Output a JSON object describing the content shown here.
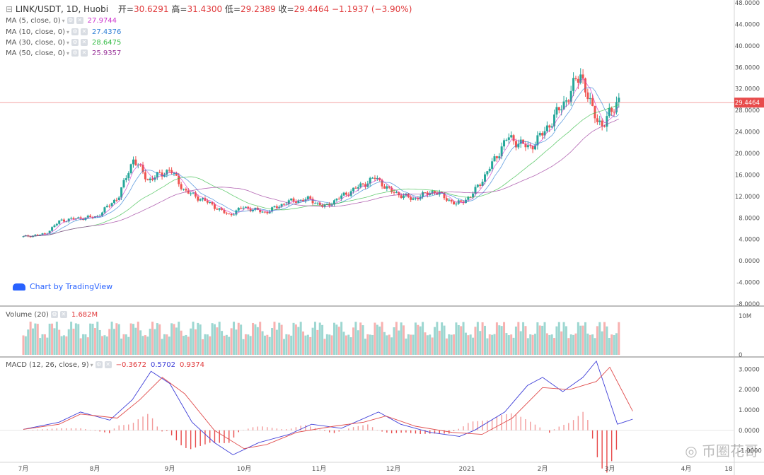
{
  "header": {
    "symbol": "LINK/USDT, 1D, Huobi",
    "open_label": "开",
    "open": "30.6291",
    "high_label": "高",
    "high": "31.4300",
    "low_label": "低",
    "low": "29.2389",
    "close_label": "收",
    "close": "29.4464",
    "change": "−1.1937 (−3.90%)"
  },
  "ma_legend": [
    {
      "label": "MA (5, close, 0)",
      "value": "27.9744",
      "color": "#cc33cc"
    },
    {
      "label": "MA (10, close, 0)",
      "value": "27.4376",
      "color": "#2f7fd6"
    },
    {
      "label": "MA (30, close, 0)",
      "value": "28.6475",
      "color": "#33bb44"
    },
    {
      "label": "MA (50, close, 0)",
      "value": "25.9357",
      "color": "#993399"
    }
  ],
  "volume_legend": {
    "label": "Volume (20)",
    "value": "1.682M"
  },
  "macd_legend": {
    "label": "MACD (12, 26, close, 9)",
    "v1": "−0.3672",
    "v2": "0.5702",
    "v3": "0.9374"
  },
  "last_price_tag": "29.4464",
  "branding": {
    "tradingview": "Chart by TradingView",
    "watermark": "币圈花哥"
  },
  "colors": {
    "up": "#26a69a",
    "down": "#ef5350",
    "price_line": "#f4a0a0",
    "macd": "#3f3fd8",
    "signal": "#e04b4b"
  },
  "chart_data": [
    {
      "type": "candlestick",
      "title": "LINK/USDT, 1D, Huobi",
      "ylim": [
        -8,
        48
      ],
      "price_ticks": [
        "48.0000",
        "44.0000",
        "40.0000",
        "36.0000",
        "32.0000",
        "28.0000",
        "24.0000",
        "20.0000",
        "16.0000",
        "12.0000",
        "8.0000",
        "4.0000",
        "0.0000",
        "-4.0000",
        "-8.0000"
      ],
      "x_ticks": [
        "7月",
        "8月",
        "9月",
        "10月",
        "11月",
        "12月",
        "2021",
        "2月",
        "3月",
        "4月",
        "18"
      ],
      "trend_points": [
        {
          "m": 0,
          "v": 4.5
        },
        {
          "m": 0.3,
          "v": 5.0
        },
        {
          "m": 0.5,
          "v": 7.5
        },
        {
          "m": 0.8,
          "v": 8.0
        },
        {
          "m": 1.0,
          "v": 8.2
        },
        {
          "m": 1.3,
          "v": 12.0
        },
        {
          "m": 1.5,
          "v": 19.0
        },
        {
          "m": 1.7,
          "v": 15.0
        },
        {
          "m": 2.0,
          "v": 17.0
        },
        {
          "m": 2.2,
          "v": 13.0
        },
        {
          "m": 2.5,
          "v": 11.0
        },
        {
          "m": 2.8,
          "v": 8.5
        },
        {
          "m": 3.0,
          "v": 10.0
        },
        {
          "m": 3.3,
          "v": 9.0
        },
        {
          "m": 3.6,
          "v": 11.0
        },
        {
          "m": 3.9,
          "v": 11.5
        },
        {
          "m": 4.1,
          "v": 10.0
        },
        {
          "m": 4.4,
          "v": 12.5
        },
        {
          "m": 4.8,
          "v": 15.5
        },
        {
          "m": 5.0,
          "v": 13.0
        },
        {
          "m": 5.3,
          "v": 11.5
        },
        {
          "m": 5.6,
          "v": 13.0
        },
        {
          "m": 5.9,
          "v": 10.5
        },
        {
          "m": 6.1,
          "v": 12.0
        },
        {
          "m": 6.3,
          "v": 16.0
        },
        {
          "m": 6.6,
          "v": 23.0
        },
        {
          "m": 6.9,
          "v": 21.0
        },
        {
          "m": 7.1,
          "v": 24.0
        },
        {
          "m": 7.4,
          "v": 30.0
        },
        {
          "m": 7.6,
          "v": 35.0
        },
        {
          "m": 7.75,
          "v": 28.0
        },
        {
          "m": 7.9,
          "v": 25.0
        },
        {
          "m": 8.1,
          "v": 30.0
        }
      ],
      "last_price": 29.4464
    },
    {
      "type": "bar",
      "title": "Volume (20)",
      "ylim": [
        0,
        12
      ],
      "ticks": [
        "10M",
        "0"
      ],
      "last_value": "1.682M"
    },
    {
      "type": "line",
      "title": "MACD (12, 26, close, 9)",
      "ylim": [
        -1.5,
        3.5
      ],
      "ticks": [
        "3.0000",
        "2.0000",
        "1.0000",
        "0.0000",
        "-1.0000"
      ],
      "macd_points": [
        {
          "m": 0,
          "v": 0.05
        },
        {
          "m": 0.5,
          "v": 0.4
        },
        {
          "m": 0.8,
          "v": 0.9
        },
        {
          "m": 1.2,
          "v": 0.5
        },
        {
          "m": 1.5,
          "v": 1.5
        },
        {
          "m": 1.75,
          "v": 2.9
        },
        {
          "m": 2.0,
          "v": 2.3
        },
        {
          "m": 2.3,
          "v": 0.4
        },
        {
          "m": 2.6,
          "v": -0.6
        },
        {
          "m": 2.85,
          "v": -1.2
        },
        {
          "m": 3.2,
          "v": -0.6
        },
        {
          "m": 3.6,
          "v": -0.2
        },
        {
          "m": 3.9,
          "v": 0.3
        },
        {
          "m": 4.3,
          "v": 0.1
        },
        {
          "m": 4.8,
          "v": 0.9
        },
        {
          "m": 5.1,
          "v": 0.3
        },
        {
          "m": 5.5,
          "v": -0.1
        },
        {
          "m": 5.9,
          "v": -0.3
        },
        {
          "m": 6.1,
          "v": 0.0
        },
        {
          "m": 6.5,
          "v": 0.9
        },
        {
          "m": 6.8,
          "v": 2.2
        },
        {
          "m": 7.0,
          "v": 2.6
        },
        {
          "m": 7.3,
          "v": 1.9
        },
        {
          "m": 7.6,
          "v": 2.6
        },
        {
          "m": 7.8,
          "v": 3.4
        },
        {
          "m": 8.1,
          "v": 0.3
        },
        {
          "m": 8.3,
          "v": 0.55
        }
      ],
      "signal_points": [
        {
          "m": 0,
          "v": 0.05
        },
        {
          "m": 0.5,
          "v": 0.3
        },
        {
          "m": 0.8,
          "v": 0.8
        },
        {
          "m": 1.3,
          "v": 0.6
        },
        {
          "m": 1.6,
          "v": 1.5
        },
        {
          "m": 1.9,
          "v": 2.6
        },
        {
          "m": 2.2,
          "v": 1.8
        },
        {
          "m": 2.6,
          "v": 0.0
        },
        {
          "m": 3.0,
          "v": -0.9
        },
        {
          "m": 3.3,
          "v": -0.7
        },
        {
          "m": 3.7,
          "v": -0.1
        },
        {
          "m": 4.2,
          "v": 0.2
        },
        {
          "m": 4.6,
          "v": 0.4
        },
        {
          "m": 4.9,
          "v": 0.7
        },
        {
          "m": 5.3,
          "v": 0.2
        },
        {
          "m": 5.8,
          "v": -0.1
        },
        {
          "m": 6.2,
          "v": -0.2
        },
        {
          "m": 6.6,
          "v": 0.6
        },
        {
          "m": 7.0,
          "v": 2.1
        },
        {
          "m": 7.4,
          "v": 2.0
        },
        {
          "m": 7.8,
          "v": 2.4
        },
        {
          "m": 8.0,
          "v": 3.1
        },
        {
          "m": 8.3,
          "v": 0.94
        }
      ]
    }
  ]
}
